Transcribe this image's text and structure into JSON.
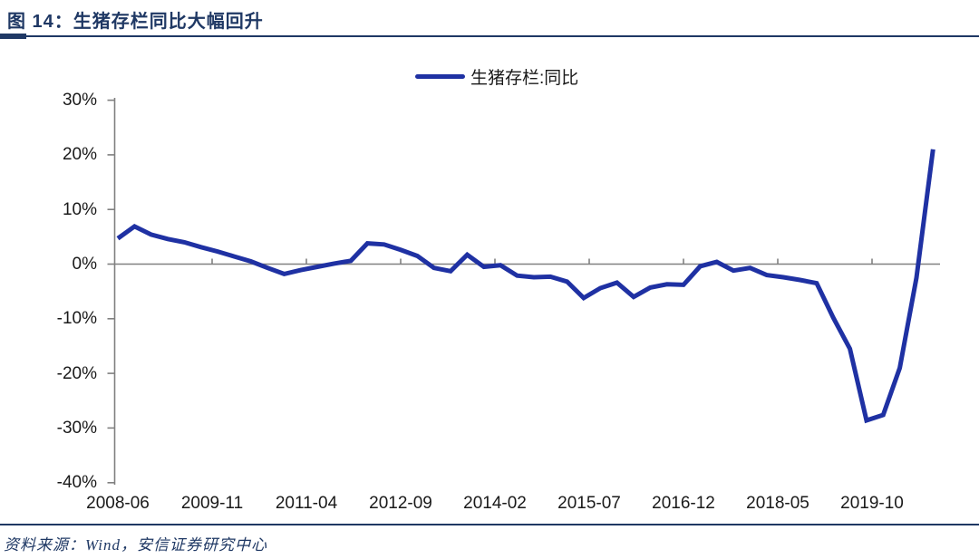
{
  "header": {
    "title": "图 14：生猪存栏同比大幅回升"
  },
  "legend": {
    "label": "生猪存栏:同比"
  },
  "footer": {
    "source": "资料来源：Wind，安信证券研究中心"
  },
  "colors": {
    "line": "#1f31a3",
    "heading_navy": "#1f3864",
    "axis_gray": "#808080",
    "tick_text": "#1a1a1a"
  },
  "chart_data": {
    "type": "line",
    "title": "图 14：生猪存栏同比大幅回升",
    "xlabel": "",
    "ylabel": "",
    "y_unit": "%",
    "ylim": [
      -40,
      30
    ],
    "y_tick_step": 10,
    "grid": "zero-line-only",
    "legend_position": "top-center",
    "y_tick_labels": [
      "30%",
      "20%",
      "10%",
      "0%",
      "-10%",
      "-20%",
      "-30%",
      "-40%"
    ],
    "x_tick_labels": [
      "2008-06",
      "2009-11",
      "2011-04",
      "2012-09",
      "2014-02",
      "2015-07",
      "2016-12",
      "2018-05",
      "2019-10"
    ],
    "series": [
      {
        "name": "生猪存栏:同比",
        "x": [
          "2008-06",
          "2008-09",
          "2008-12",
          "2009-03",
          "2009-06",
          "2009-09",
          "2009-12",
          "2010-03",
          "2010-06",
          "2010-09",
          "2010-12",
          "2011-03",
          "2011-06",
          "2011-09",
          "2011-12",
          "2012-03",
          "2012-06",
          "2012-09",
          "2012-12",
          "2013-03",
          "2013-06",
          "2013-09",
          "2013-12",
          "2014-03",
          "2014-06",
          "2014-09",
          "2014-12",
          "2015-03",
          "2015-06",
          "2015-09",
          "2015-12",
          "2016-03",
          "2016-06",
          "2016-09",
          "2016-12",
          "2017-03",
          "2017-06",
          "2017-09",
          "2017-12",
          "2018-03",
          "2018-06",
          "2018-09",
          "2018-12",
          "2019-03",
          "2019-06",
          "2019-09",
          "2019-12",
          "2020-03",
          "2020-06",
          "2020-09"
        ],
        "values": [
          4.7,
          6.9,
          5.4,
          4.6,
          4.0,
          3.1,
          2.3,
          1.4,
          0.5,
          -0.7,
          -1.8,
          -1.1,
          -0.5,
          0.1,
          0.6,
          3.8,
          3.6,
          2.6,
          1.5,
          -0.7,
          -1.3,
          1.7,
          -0.5,
          -0.2,
          -2.1,
          -2.4,
          -2.3,
          -3.2,
          -6.2,
          -4.4,
          -3.4,
          -6.0,
          -4.3,
          -3.7,
          -3.8,
          -0.4,
          0.4,
          -1.2,
          -0.7,
          -2.0,
          -2.4,
          -2.9,
          -3.5,
          -9.8,
          -15.5,
          -28.6,
          -27.6,
          -19.0,
          -2.5,
          21.0
        ]
      }
    ]
  }
}
